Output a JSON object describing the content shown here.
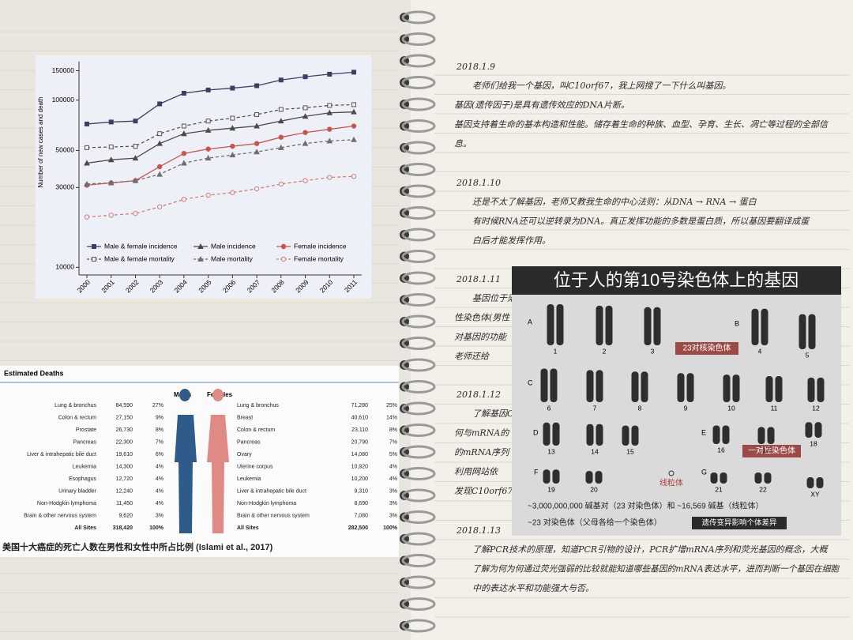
{
  "chart_data": {
    "type": "line",
    "y_label": "Number of new cases and death",
    "categories": [
      "2000",
      "2001",
      "2002",
      "2003",
      "2004",
      "2005",
      "2006",
      "2007",
      "2008",
      "2009",
      "2010",
      "2011"
    ],
    "ylim": [
      9000,
      170000
    ],
    "yticks": [
      10000,
      30000,
      50000,
      100000,
      150000
    ],
    "log": true,
    "grid": false,
    "series": [
      {
        "name": "Male & female incidence",
        "color": "#3b4060",
        "marker": "square",
        "dashed": false,
        "values": [
          72000,
          74000,
          75000,
          95000,
          110000,
          115000,
          118000,
          122000,
          132000,
          138000,
          143000,
          147000
        ]
      },
      {
        "name": "Male incidence",
        "color": "#4a4a4a",
        "marker": "triangle",
        "dashed": false,
        "values": [
          42000,
          44000,
          45000,
          55000,
          63000,
          66000,
          68000,
          70000,
          75000,
          80000,
          84000,
          85000
        ]
      },
      {
        "name": "Female incidence",
        "color": "#c8564f",
        "marker": "circle",
        "dashed": false,
        "values": [
          31000,
          32000,
          33000,
          40000,
          48000,
          51000,
          53000,
          55000,
          60000,
          64000,
          67000,
          70000
        ]
      },
      {
        "name": "Male & female mortality",
        "color": "#555555",
        "marker": "open-square",
        "dashed": true,
        "values": [
          52000,
          52500,
          53000,
          63000,
          70000,
          75000,
          78000,
          82000,
          88000,
          90000,
          93000,
          94000
        ]
      },
      {
        "name": "Male mortality",
        "color": "#6e6e6e",
        "marker": "triangle",
        "dashed": true,
        "values": [
          31500,
          32000,
          33000,
          36000,
          42000,
          45000,
          47000,
          49000,
          52000,
          55000,
          57000,
          58000
        ]
      },
      {
        "name": "Female mortality",
        "color": "#d37e77",
        "marker": "open-circle",
        "dashed": true,
        "values": [
          20000,
          20500,
          21000,
          23000,
          25500,
          27000,
          28000,
          29500,
          31500,
          33000,
          34500,
          35000
        ]
      }
    ]
  },
  "table": {
    "title": "Estimated Deaths",
    "males_header": "Males",
    "females_header": "Females",
    "males": [
      [
        "Lung & bronchus",
        "84,590",
        "27%"
      ],
      [
        "Colon & rectum",
        "27,150",
        "9%"
      ],
      [
        "Prostate",
        "26,730",
        "8%"
      ],
      [
        "Pancreas",
        "22,300",
        "7%"
      ],
      [
        "Liver & intrahepatic bile duct",
        "19,610",
        "6%"
      ],
      [
        "Leukemia",
        "14,300",
        "4%"
      ],
      [
        "Esophagus",
        "12,720",
        "4%"
      ],
      [
        "Urinary bladder",
        "12,240",
        "4%"
      ],
      [
        "Non-Hodgkin lymphoma",
        "11,450",
        "4%"
      ],
      [
        "Brain & other nervous system",
        "9,620",
        "3%"
      ],
      [
        "All Sites",
        "318,420",
        "100%"
      ]
    ],
    "females": [
      [
        "Lung & bronchus",
        "71,280",
        "25%"
      ],
      [
        "Breast",
        "40,610",
        "14%"
      ],
      [
        "Colon & rectum",
        "23,110",
        "8%"
      ],
      [
        "Pancreas",
        "20,790",
        "7%"
      ],
      [
        "Ovary",
        "14,080",
        "5%"
      ],
      [
        "Uterine corpus",
        "10,920",
        "4%"
      ],
      [
        "Leukemia",
        "10,200",
        "4%"
      ],
      [
        "Liver & intrahepatic bile duct",
        "9,310",
        "3%"
      ],
      [
        "Non-Hodgkin lymphoma",
        "8,690",
        "3%"
      ],
      [
        "Brain & other nervous system",
        "7,080",
        "3%"
      ],
      [
        "All Sites",
        "282,500",
        "100%"
      ]
    ],
    "caption": "美国十大癌症的死亡人数在男性和女性中所占比例 (Islami et al., 2017)"
  },
  "karyotype": {
    "title": "位于人的第10号染色体上的基因",
    "groups": [
      "A",
      "B",
      "C",
      "D",
      "E",
      "F",
      "G"
    ],
    "numbers": [
      "1",
      "2",
      "3",
      "4",
      "5",
      "6",
      "7",
      "8",
      "9",
      "10",
      "11",
      "12",
      "13",
      "14",
      "15",
      "16",
      "17",
      "18",
      "19",
      "20",
      "21",
      "22",
      "XY"
    ],
    "autosome_tag": "23对核染色体",
    "sex_tag": "一对性染色体",
    "mito_label": "线粒体",
    "base_pairs": "~3,000,000,000 碱基对（23 对染色体）和 ~16,569 碱基（线粒体）",
    "pairs_note": "~23 对染色体（父母各给一个染色体）",
    "variation_tag": "遗传变异影响个体差异"
  },
  "notes": [
    {
      "date": "2018.1.9",
      "lines": [
        "老师们给我一个基因，叫C10orf67，我上网搜了一下什么叫基因。",
        "基因(遗传因子)是具有遗传效应的DNA片断。",
        "基因支持着生命的基本构造和性能。储存着生命的种族、血型、孕育、生长、凋亡等过程的全部信",
        "息。"
      ]
    },
    {
      "date": "2018.1.10",
      "lines": [
        "还是不太了解基因，老师又教我生命的中心法则：从DNA → RNA → 蛋白",
        "有时候RNA还可以逆转录为DNA。真正发挥功能的多数是蛋白质，所以基因要翻译成蛋",
        "白后才能发挥作用。"
      ]
    },
    {
      "date": "2018.1.11",
      "lines": [
        "基因位于染",
        "性染色体(男性",
        "对基因的功能",
        "老师还给"
      ]
    },
    {
      "date": "2018.1.12",
      "lines": [
        "了解基因C",
        "何与mRNA的",
        "的mRNA序列",
        "利用网站依",
        "发现C10orf67"
      ]
    },
    {
      "date": "2018.1.13",
      "lines": [
        "了解PCR技术的原理，知道PCR引物的设计，PCR扩增mRNA序列和荧光基因的概念，大概",
        "了解为何为何通过荧光强弱的比较就能知道哪些基因的mRNA表达水平，进而判断一个基因在细胞",
        "中的表达水平和功能强大与否。"
      ]
    }
  ]
}
